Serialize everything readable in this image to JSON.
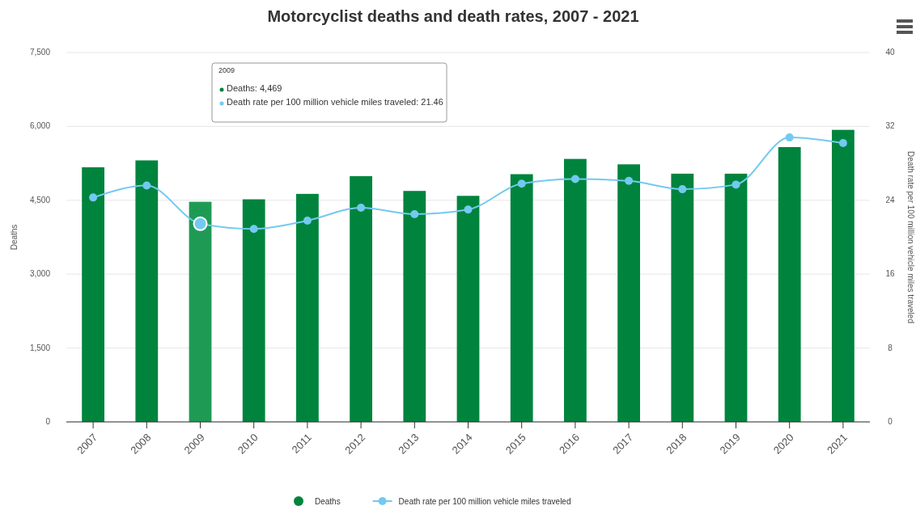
{
  "chart_data": {
    "type": "bar",
    "title": "Motorcyclist deaths and death rates, 2007 - 2021",
    "categories": [
      "2007",
      "2008",
      "2009",
      "2010",
      "2011",
      "2012",
      "2013",
      "2014",
      "2015",
      "2016",
      "2017",
      "2018",
      "2019",
      "2020",
      "2021"
    ],
    "series": [
      {
        "name": "Deaths",
        "color": "#00843d",
        "colors": [
          "#00843d",
          "#00843d",
          "#1f9a55",
          "#00843d",
          "#00843d",
          "#00843d",
          "#00843d",
          "#00843d",
          "#00843d",
          "#00843d",
          "#00843d",
          "#00843d",
          "#00843d",
          "#00843d",
          "#00843d"
        ],
        "values": [
          5170,
          5310,
          4469,
          4520,
          4630,
          4990,
          4690,
          4590,
          5030,
          5340,
          5230,
          5040,
          5040,
          5580,
          5930
        ]
      },
      {
        "name": "Death rate per 100 million vehicle miles traveled",
        "type": "line",
        "axis": "y2",
        "color": "#73c9f0",
        "values": [
          24.3,
          25.6,
          21.46,
          20.9,
          21.8,
          23.2,
          22.5,
          23.0,
          25.8,
          26.3,
          26.1,
          25.2,
          25.7,
          30.8,
          30.2
        ]
      }
    ],
    "ylabel": "Deaths",
    "y2label": "Death rate per 100 million vehicle miles traveled",
    "ylim": [
      0,
      7500
    ],
    "yticks": [
      0,
      {
        "value": 1500,
        "label": "1,500"
      },
      {
        "value": 3000,
        "label": "3,000"
      },
      {
        "value": 4500,
        "label": "4,500"
      },
      {
        "value": 6000,
        "label": "6,000"
      },
      {
        "value": 7500,
        "label": "7,500"
      }
    ],
    "y2lim": [
      0,
      40
    ],
    "y2ticks": [
      0,
      8,
      16,
      24,
      32,
      40
    ],
    "grid": "y",
    "legend": "bottom",
    "marker": "circle",
    "annotations": [
      "2009",
      "Deaths: 4,469",
      "Death rate per 100 million vehicle miles traveled: 21.46"
    ]
  }
}
